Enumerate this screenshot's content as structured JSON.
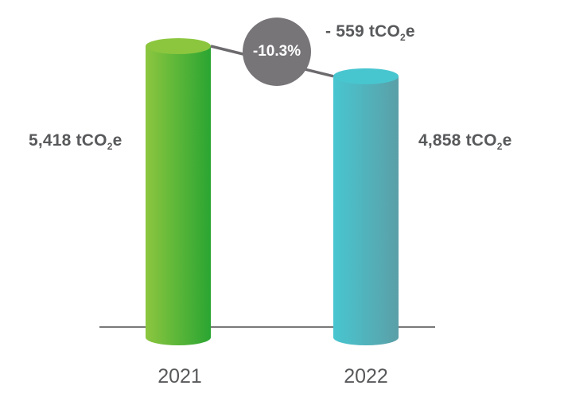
{
  "chart_data": {
    "type": "bar",
    "categories": [
      "2021",
      "2022"
    ],
    "values": [
      5418,
      4858
    ],
    "value_labels": [
      {
        "main": "5,418 tCO",
        "sub": "2",
        "tail": "e"
      },
      {
        "main": "4,858 tCO",
        "sub": "2",
        "tail": "e"
      }
    ],
    "change": {
      "percent_label": "-10.3%",
      "absolute_label": {
        "main": "- 559 tCO",
        "sub": "2",
        "tail": "e"
      }
    },
    "ylim": [
      0,
      5418
    ],
    "grid": false,
    "legend": "none"
  },
  "colors": {
    "bar_2021_light": "#8cc63f",
    "bar_2021_dark": "#2aa532",
    "bar_2022_light": "#48c6d0",
    "bar_2022_dark": "#5b9fa7",
    "connector": "#6d6a6e",
    "bubble": "#787579",
    "baseline": "#4d4d4d",
    "text": "#58595b"
  }
}
